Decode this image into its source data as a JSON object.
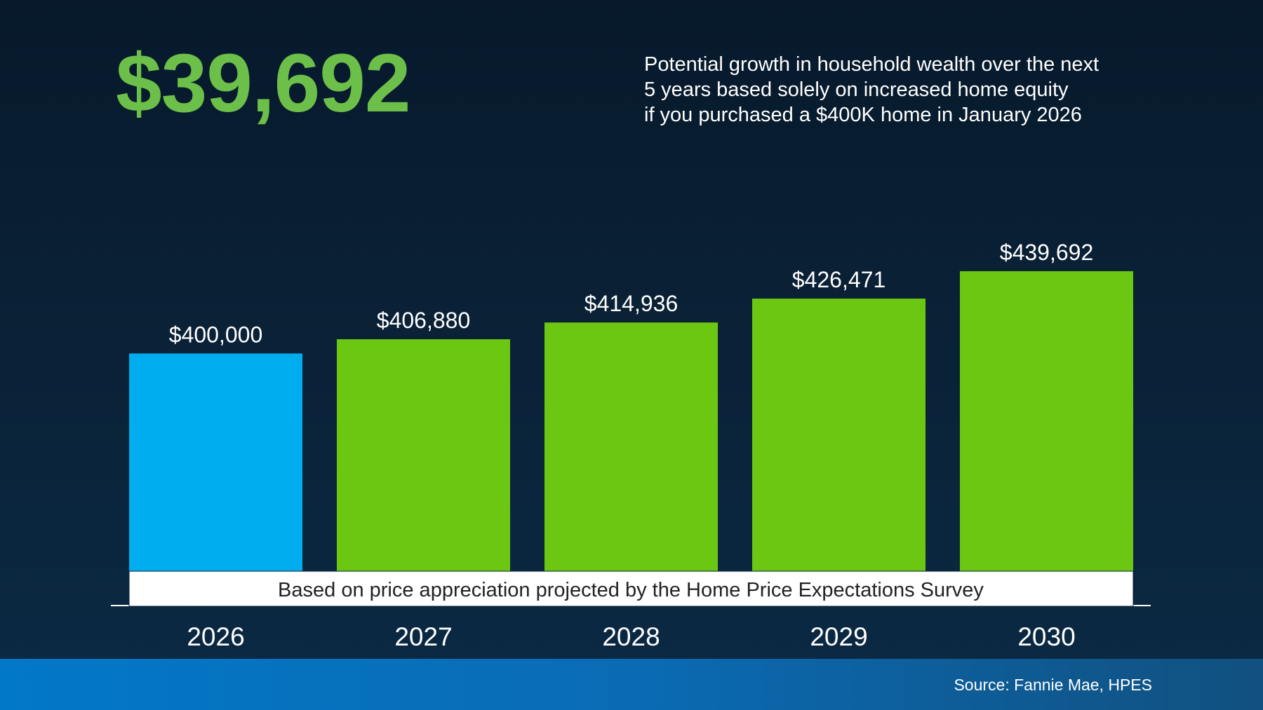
{
  "headline": {
    "value": "$39,692",
    "color": "#6cc04a"
  },
  "description": {
    "lines": [
      "Potential growth in household wealth over the next",
      "5 years based solely on increased home equity",
      "if you purchased a $400K home in January 2026"
    ]
  },
  "chart_data": {
    "type": "bar",
    "categories": [
      "2026",
      "2027",
      "2028",
      "2029",
      "2030"
    ],
    "values": [
      400000,
      406880,
      414936,
      426471,
      439692
    ],
    "value_labels": [
      "$400,000",
      "$406,880",
      "$414,936",
      "$426,471",
      "$439,692"
    ],
    "bar_colors": [
      "#00aeef",
      "#6cc712",
      "#6cc712",
      "#6cc712",
      "#6cc712"
    ],
    "ylim": [
      295000,
      440000
    ],
    "note": "Based on price appreciation projected by the Home Price Expectations Survey",
    "grid": false,
    "legend": "none"
  },
  "footer": {
    "source": "Source: Fannie Mae, HPES"
  }
}
